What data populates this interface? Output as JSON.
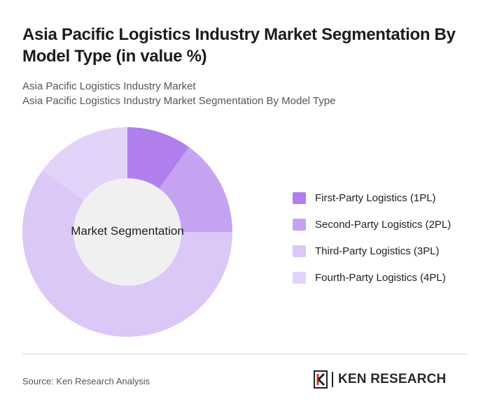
{
  "header": {
    "title": "Asia Pacific Logistics Industry Market Segmentation By Model Type (in value %)",
    "subtitle_line1": "Asia Pacific Logistics Industry Market",
    "subtitle_line2": "Asia Pacific Logistics Industry Market Segmentation By Model Type"
  },
  "chart_data": {
    "type": "pie",
    "variant": "donut",
    "center_label": "Market Segmentation",
    "legend_position": "right",
    "series": [
      {
        "name": "First-Party Logistics (1PL)",
        "value": 10,
        "color": "#b07fec"
      },
      {
        "name": "Second-Party Logistics (2PL)",
        "value": 15,
        "color": "#c5a3f0"
      },
      {
        "name": "Third-Party Logistics (3PL)",
        "value": 60,
        "color": "#dcc8f7"
      },
      {
        "name": "Fourth-Party Logistics (4PL)",
        "value": 15,
        "color": "#e3d3f9"
      }
    ],
    "center_fill": "#f0f0f0"
  },
  "footer": {
    "source": "Source: Ken Research Analysis",
    "logo_text": "KEN RESEARCH"
  }
}
